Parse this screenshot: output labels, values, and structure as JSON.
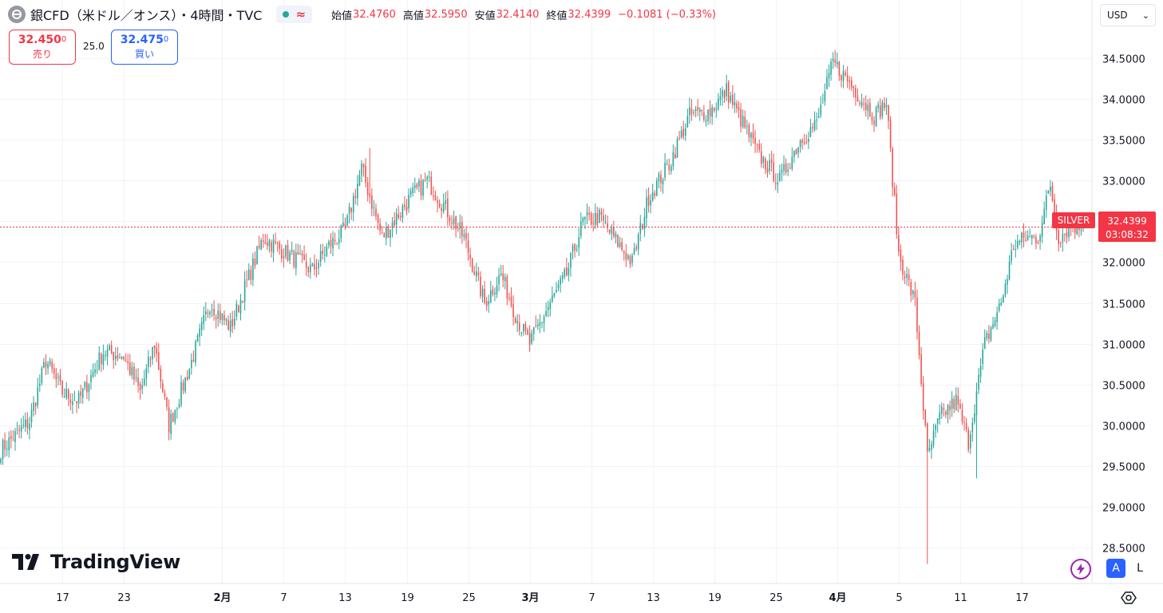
{
  "header": {
    "symbol_title": "銀CFD（米ドル／オンス）・4時間・TVC",
    "ohlc": {
      "open_label": "始値",
      "open": "32.4760",
      "high_label": "高値",
      "high": "32.5950",
      "low_label": "安値",
      "low": "32.4140",
      "close_label": "終値",
      "close": "32.4399",
      "change": "−0.1081 (−0.33%)"
    },
    "status_icons": [
      "market-open-dot-icon",
      "delayed-data-icon"
    ]
  },
  "trade": {
    "sell_price": "32.450",
    "sell_price_small": "0",
    "sell_label": "売り",
    "spread": "25.0",
    "buy_price": "32.475",
    "buy_price_small": "0",
    "buy_label": "買い"
  },
  "currency": {
    "selected": "USD"
  },
  "price_marker": {
    "symbol_label": "SILVER",
    "price": "32.4399",
    "countdown": "03:08:32"
  },
  "logo": {
    "text": "TradingView"
  },
  "controls": {
    "auto_scale": "A",
    "log_scale": "L"
  },
  "colors": {
    "up": "#26a69a",
    "down": "#ef5350",
    "marker": "#f23645",
    "grid": "#f0f3fa",
    "accent": "#2962ff"
  },
  "chart_data": {
    "type": "candlestick",
    "interval": "4時間",
    "last_close": 32.4399,
    "y_axis": {
      "ticks": [
        28.5,
        29.0,
        29.5,
        30.0,
        30.5,
        31.0,
        31.5,
        32.0,
        32.5,
        33.0,
        33.5,
        34.0,
        34.5
      ],
      "tick_labels": [
        "28.5000",
        "29.0000",
        "29.5000",
        "30.0000",
        "30.5000",
        "31.0000",
        "31.5000",
        "32.0000",
        "32.5000",
        "33.0000",
        "33.5000",
        "34.0000",
        "34.5000"
      ],
      "range": [
        28.1,
        34.95
      ]
    },
    "x_axis": {
      "tick_labels": [
        "17",
        "23",
        "2月",
        "7",
        "13",
        "19",
        "25",
        "3月",
        "7",
        "13",
        "19",
        "25",
        "4月",
        "5",
        "11",
        "17"
      ],
      "bold": [
        false,
        false,
        true,
        false,
        false,
        false,
        false,
        true,
        false,
        false,
        false,
        false,
        true,
        false,
        false,
        false
      ],
      "tick_index": [
        30,
        60,
        108,
        138,
        168,
        198,
        228,
        258,
        288,
        318,
        348,
        378,
        408,
        438,
        468,
        498
      ]
    },
    "index_range": [
      0,
      528
    ],
    "key_points": [
      {
        "i": 0,
        "price": 29.7
      },
      {
        "i": 14,
        "price": 30.05
      },
      {
        "i": 22,
        "price": 30.8
      },
      {
        "i": 30,
        "price": 30.4
      },
      {
        "i": 38,
        "price": 30.3
      },
      {
        "i": 50,
        "price": 30.9
      },
      {
        "i": 60,
        "price": 30.85
      },
      {
        "i": 68,
        "price": 30.4
      },
      {
        "i": 75,
        "price": 31.0
      },
      {
        "i": 82,
        "price": 30.0
      },
      {
        "i": 92,
        "price": 30.7
      },
      {
        "i": 102,
        "price": 31.5
      },
      {
        "i": 112,
        "price": 31.2
      },
      {
        "i": 128,
        "price": 32.3
      },
      {
        "i": 140,
        "price": 32.1
      },
      {
        "i": 152,
        "price": 31.9
      },
      {
        "i": 160,
        "price": 32.2
      },
      {
        "i": 168,
        "price": 32.4
      },
      {
        "i": 176,
        "price": 33.15
      },
      {
        "i": 186,
        "price": 32.3
      },
      {
        "i": 200,
        "price": 32.8
      },
      {
        "i": 208,
        "price": 33.0
      },
      {
        "i": 216,
        "price": 32.7
      },
      {
        "i": 226,
        "price": 32.3
      },
      {
        "i": 236,
        "price": 31.5
      },
      {
        "i": 244,
        "price": 31.85
      },
      {
        "i": 252,
        "price": 31.3
      },
      {
        "i": 258,
        "price": 31.0
      },
      {
        "i": 268,
        "price": 31.5
      },
      {
        "i": 276,
        "price": 31.85
      },
      {
        "i": 284,
        "price": 32.5
      },
      {
        "i": 292,
        "price": 32.55
      },
      {
        "i": 302,
        "price": 32.2
      },
      {
        "i": 308,
        "price": 32.0
      },
      {
        "i": 316,
        "price": 32.8
      },
      {
        "i": 326,
        "price": 33.2
      },
      {
        "i": 336,
        "price": 33.8
      },
      {
        "i": 346,
        "price": 33.85
      },
      {
        "i": 354,
        "price": 34.1
      },
      {
        "i": 362,
        "price": 33.7
      },
      {
        "i": 370,
        "price": 33.3
      },
      {
        "i": 380,
        "price": 33.0
      },
      {
        "i": 390,
        "price": 33.5
      },
      {
        "i": 398,
        "price": 33.7
      },
      {
        "i": 406,
        "price": 34.45
      },
      {
        "i": 414,
        "price": 34.2
      },
      {
        "i": 426,
        "price": 33.8
      },
      {
        "i": 432,
        "price": 33.95
      },
      {
        "i": 438,
        "price": 32.1
      },
      {
        "i": 446,
        "price": 31.5
      },
      {
        "i": 452,
        "price": 29.6
      },
      {
        "i": 458,
        "price": 30.1
      },
      {
        "i": 466,
        "price": 30.3
      },
      {
        "i": 472,
        "price": 29.8
      },
      {
        "i": 480,
        "price": 31.0
      },
      {
        "i": 488,
        "price": 31.5
      },
      {
        "i": 494,
        "price": 32.2
      },
      {
        "i": 500,
        "price": 32.3
      },
      {
        "i": 506,
        "price": 32.3
      },
      {
        "i": 512,
        "price": 32.95
      },
      {
        "i": 516,
        "price": 32.3
      },
      {
        "i": 522,
        "price": 32.45
      },
      {
        "i": 528,
        "price": 32.44
      }
    ],
    "spikes": [
      {
        "i": 452,
        "low": 28.3
      },
      {
        "i": 476,
        "low": 29.35
      },
      {
        "i": 180,
        "high": 33.4
      },
      {
        "i": 407,
        "high": 34.6
      }
    ]
  }
}
